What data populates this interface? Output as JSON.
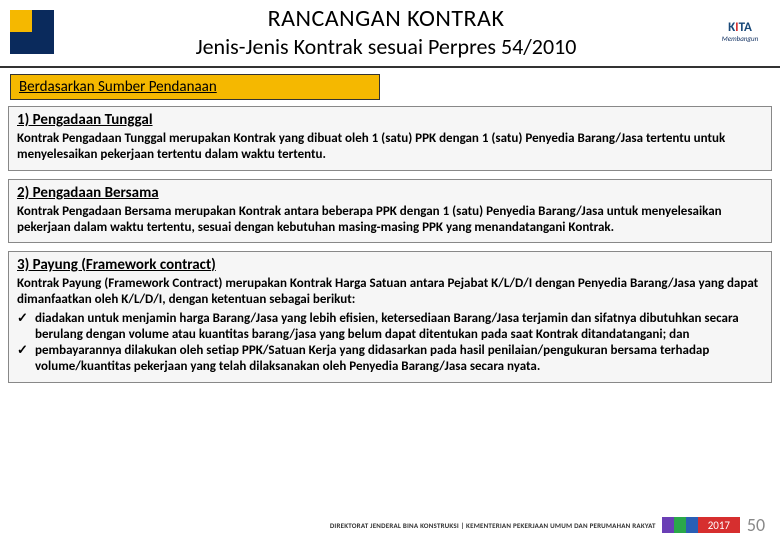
{
  "header": {
    "title_main": "RANCANGAN KONTRAK",
    "title_sub": "Jenis-Jenis Kontrak sesuai Perpres 54/2010",
    "logo_right_main": "K TA",
    "logo_right_sub": "Membangun"
  },
  "section_band": "Berdasarkan Sumber Pendanaan",
  "cards": [
    {
      "title": "1)   Pengadaan Tunggal",
      "body": "Kontrak Pengadaan Tunggal merupakan Kontrak yang dibuat oleh 1 (satu) PPK dengan 1 (satu) Penyedia Barang/Jasa tertentu untuk menyelesaikan pekerjaan tertentu dalam waktu tertentu."
    },
    {
      "title": "2)   Pengadaan Bersama",
      "body": "Kontrak Pengadaan Bersama merupakan Kontrak antara beberapa PPK dengan 1 (satu) Penyedia Barang/Jasa untuk menyelesaikan pekerjaan dalam waktu tertentu, sesuai dengan kebutuhan masing-masing PPK yang menandatangani Kontrak."
    },
    {
      "title_prefix": "3)   Payung (",
      "title_em": "Framework contract",
      "title_suffix": ")",
      "body": "Kontrak Payung (Framework Contract) merupakan Kontrak Harga Satuan antara Pejabat K/L/D/I dengan Penyedia Barang/Jasa yang dapat dimanfaatkan oleh K/L/D/I, dengan ketentuan sebagai berikut:",
      "bullets": [
        "diadakan untuk menjamin harga Barang/Jasa yang lebih efisien, ketersediaan Barang/Jasa terjamin dan sifatnya dibutuhkan secara berulang dengan volume atau kuantitas barang/jasa yang belum dapat ditentukan pada saat Kontrak ditandatangani; dan",
        "pembayarannya dilakukan oleh setiap PPK/Satuan Kerja yang didasarkan pada hasil penilaian/pengukuran bersama terhadap volume/kuantitas pekerjaan yang telah dilaksanakan oleh Penyedia Barang/Jasa secara nyata."
      ]
    }
  ],
  "footer": {
    "org": "DIREKTORAT JENDERAL BINA KONSTRUKSI |  KEMENTERIAN PEKERJAAN UMUM DAN PERUMAHAN RAKYAT",
    "year": "2017",
    "page": "50",
    "stripe_colors": [
      "#6a3fb5",
      "#2aa84a",
      "#2a5fb5"
    ],
    "year_bg": "#d62f2f"
  },
  "colors": {
    "band_bg": "#f5b800",
    "card_bg": "#f6f6f6",
    "logo_blue": "#0a2a5c",
    "logo_yellow": "#f5b800"
  }
}
